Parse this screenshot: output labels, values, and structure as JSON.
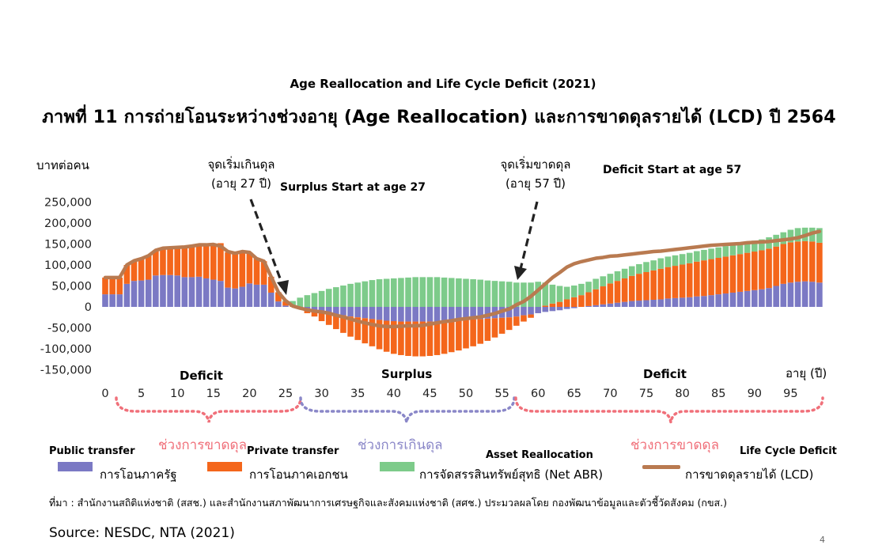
{
  "subtitle": "Age Reallocation and Life Cycle Deficit (2021)",
  "title": "ภาพที่ 11 การถ่ายโอนระหว่างช่วงอายุ (Age Reallocation) และการขาดดุลรายได้ (LCD) ปี 2564",
  "annotations": {
    "surplus_start_th_1": "จุดเริ่มเกินดุล",
    "surplus_start_th_2": "(อายุ 27 ปี)",
    "surplus_start_en": "Surplus Start at age 27",
    "deficit_start_th_1": "จุดเริ่มขาดดุล",
    "deficit_start_th_2": "(อายุ 57 ปี)",
    "deficit_start_en": "Deficit Start at age 57"
  },
  "zones": {
    "left": "Deficit",
    "middle": "Surplus",
    "right": "Deficit"
  },
  "brackets": {
    "left": "ช่วงการขาดดุล",
    "middle": "ช่วงการเกินดุล",
    "right": "ช่วงการขาดดุล"
  },
  "legend": [
    {
      "en": "Public transfer",
      "th": "การโอนภาครัฐ",
      "color": "#7B79C4"
    },
    {
      "en": "Private transfer",
      "th": "การโอนภาคเอกชน",
      "color": "#F4661B"
    },
    {
      "en": "Asset Reallocation",
      "th": "การจัดสรรสินทรัพย์สุทธิ (Net ABR)",
      "color": "#7DCB8A"
    },
    {
      "en": "Life Cycle Deficit",
      "th": "การขาดดุลรายได้ (LCD)",
      "color": "#B97A50"
    }
  ],
  "note": "ที่มา : สำนักงานสถิติแห่งชาติ (สสช.) และสำนักงานสภาพัฒนาการเศรษฐกิจและสังคมแห่งชาติ (สศช.) ประมวลผลโดย กองพัฒนาข้อมูลและตัวชี้วัดสังคม (กขส.)",
  "source": "Source: NESDC, NTA (2021)",
  "page_number": "4",
  "colors": {
    "public": "#7B79C4",
    "private": "#F4661B",
    "asset": "#7DCB8A",
    "lcd": "#B97A50",
    "bracket_deficit": "#F0707A",
    "bracket_surplus": "#8A87C8"
  },
  "chart_data": {
    "type": "bar",
    "stacked": true,
    "ylabel": "บาทต่อคน",
    "xlabel": "อายุ (ปี)",
    "ylim": [
      -150000,
      250000
    ],
    "yticks": [
      250000,
      200000,
      150000,
      100000,
      50000,
      0,
      -50000,
      -100000,
      -150000
    ],
    "ytick_labels": [
      "250,000",
      "200,000",
      "150,000",
      "100,000",
      "50,000",
      "0",
      "-50,000",
      "-100,000",
      "-150,000"
    ],
    "xticks": [
      0,
      5,
      10,
      15,
      20,
      25,
      30,
      35,
      40,
      45,
      50,
      55,
      60,
      65,
      70,
      75,
      80,
      85,
      90,
      95
    ],
    "x": [
      0,
      1,
      2,
      3,
      4,
      5,
      6,
      7,
      8,
      9,
      10,
      11,
      12,
      13,
      14,
      15,
      16,
      17,
      18,
      19,
      20,
      21,
      22,
      23,
      24,
      25,
      26,
      27,
      28,
      29,
      30,
      31,
      32,
      33,
      34,
      35,
      36,
      37,
      38,
      39,
      40,
      41,
      42,
      43,
      44,
      45,
      46,
      47,
      48,
      49,
      50,
      51,
      52,
      53,
      54,
      55,
      56,
      57,
      58,
      59,
      60,
      61,
      62,
      63,
      64,
      65,
      66,
      67,
      68,
      69,
      70,
      71,
      72,
      73,
      74,
      75,
      76,
      77,
      78,
      79,
      80,
      81,
      82,
      83,
      84,
      85,
      86,
      87,
      88,
      89,
      90,
      91,
      92,
      93,
      94,
      95,
      96,
      97,
      98,
      99
    ],
    "series": [
      {
        "name": "Public transfer",
        "values": [
          30000,
          30000,
          30000,
          55000,
          62000,
          63000,
          65000,
          75000,
          76000,
          76000,
          75000,
          71000,
          71000,
          72000,
          68000,
          65000,
          62000,
          46000,
          44000,
          48000,
          56000,
          53000,
          53000,
          34000,
          13000,
          3000,
          0,
          0,
          -5000,
          -8000,
          -12000,
          -15000,
          -18000,
          -20000,
          -23000,
          -25000,
          -27000,
          -29000,
          -31000,
          -33000,
          -34000,
          -35000,
          -35000,
          -35000,
          -35000,
          -35000,
          -35000,
          -34000,
          -33000,
          -32000,
          -31000,
          -30000,
          -29000,
          -28000,
          -27000,
          -26000,
          -25000,
          -23000,
          -20000,
          -18000,
          -15000,
          -12000,
          -10000,
          -8000,
          -5000,
          -3000,
          0,
          2000,
          4000,
          6000,
          8000,
          10000,
          12000,
          14000,
          15000,
          16000,
          17000,
          18000,
          20000,
          21000,
          22000,
          23000,
          25000,
          26000,
          28000,
          30000,
          32000,
          34000,
          36000,
          38000,
          40000,
          42000,
          45000,
          50000,
          55000,
          58000,
          60000,
          61000,
          60000,
          58000
        ]
      },
      {
        "name": "Private transfer",
        "values": [
          40000,
          40000,
          40000,
          45000,
          48000,
          52000,
          57000,
          60000,
          64000,
          65000,
          67000,
          72000,
          72000,
          75000,
          79000,
          82000,
          90000,
          84000,
          84000,
          84000,
          74000,
          62000,
          56000,
          38000,
          22000,
          10000,
          2000,
          -5000,
          -10000,
          -15000,
          -22000,
          -28000,
          -35000,
          -42000,
          -48000,
          -54000,
          -60000,
          -65000,
          -70000,
          -74000,
          -78000,
          -80000,
          -82000,
          -83000,
          -83000,
          -82000,
          -80000,
          -78000,
          -75000,
          -72000,
          -68000,
          -64000,
          -59000,
          -53000,
          -46000,
          -38000,
          -30000,
          -22000,
          -15000,
          -8000,
          0,
          3000,
          8000,
          12000,
          18000,
          23000,
          28000,
          33000,
          38000,
          43000,
          48000,
          52000,
          56000,
          60000,
          64000,
          67000,
          70000,
          73000,
          75000,
          77000,
          79000,
          81000,
          83000,
          85000,
          86000,
          87000,
          88000,
          89000,
          90000,
          91000,
          92000,
          93000,
          94000,
          94000,
          95000,
          96000,
          96000,
          96000,
          96000,
          95000
        ]
      },
      {
        "name": "Asset Reallocation",
        "values": [
          0,
          0,
          0,
          0,
          0,
          0,
          0,
          0,
          0,
          0,
          0,
          0,
          0,
          0,
          0,
          0,
          0,
          0,
          0,
          0,
          0,
          0,
          0,
          0,
          0,
          2000,
          12000,
          22000,
          28000,
          33000,
          38000,
          43000,
          47000,
          51000,
          55000,
          58000,
          61000,
          64000,
          66000,
          67000,
          68000,
          69000,
          70000,
          71000,
          71000,
          71000,
          71000,
          70000,
          69000,
          68000,
          67000,
          66000,
          65000,
          63000,
          62000,
          61000,
          60000,
          58000,
          58000,
          58000,
          60000,
          55000,
          45000,
          38000,
          30000,
          28000,
          27000,
          25000,
          25000,
          24000,
          23000,
          23000,
          23000,
          23000,
          23000,
          24000,
          24000,
          25000,
          25000,
          25000,
          25000,
          25000,
          25000,
          25000,
          25000,
          25000,
          25000,
          25000,
          25000,
          25000,
          26000,
          26000,
          27000,
          28000,
          28000,
          30000,
          32000,
          32000,
          33000,
          35000
        ]
      },
      {
        "name": "Life Cycle Deficit",
        "type": "line",
        "values": [
          70000,
          70000,
          70000,
          100000,
          110000,
          115000,
          122000,
          135000,
          140000,
          141000,
          142000,
          143000,
          145000,
          148000,
          148000,
          149000,
          145000,
          132000,
          128000,
          132000,
          130000,
          115000,
          109000,
          72000,
          35000,
          15000,
          2000,
          -3000,
          -7000,
          -10000,
          -12000,
          -15000,
          -20000,
          -24000,
          -29000,
          -34000,
          -38000,
          -42000,
          -45000,
          -47000,
          -47000,
          -46000,
          -45000,
          -45000,
          -44000,
          -41000,
          -38000,
          -35000,
          -33000,
          -30000,
          -28000,
          -26000,
          -24000,
          -20000,
          -16000,
          -10000,
          -5000,
          5000,
          13000,
          25000,
          40000,
          55000,
          70000,
          82000,
          95000,
          103000,
          108000,
          112000,
          116000,
          118000,
          121000,
          122000,
          124000,
          126000,
          128000,
          130000,
          132000,
          133000,
          135000,
          137000,
          139000,
          141000,
          143000,
          145000,
          147000,
          148000,
          149000,
          150000,
          151000,
          153000,
          154000,
          155000,
          156000,
          158000,
          160000,
          162000,
          165000,
          170000,
          176000,
          180000
        ]
      }
    ]
  }
}
